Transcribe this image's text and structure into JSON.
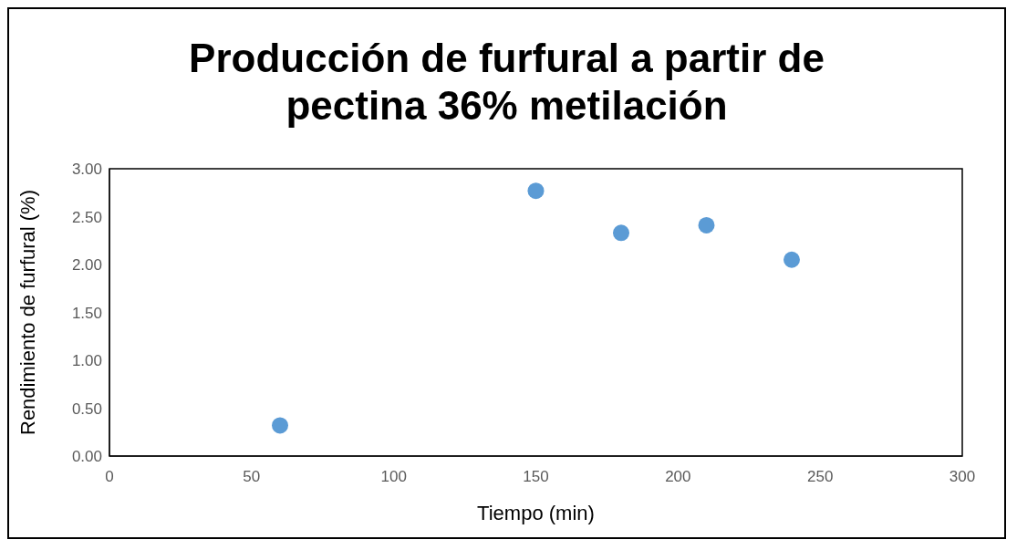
{
  "chart_data": {
    "type": "scatter",
    "title": "Producción de furfural a partir de pectina 36% metilación",
    "xlabel": "Tiempo (min)",
    "ylabel": "Rendimiento de furfural (%)",
    "x": [
      60,
      150,
      180,
      210,
      240
    ],
    "values": [
      0.32,
      2.77,
      2.33,
      2.41,
      2.05
    ],
    "color": "#5b9bd5",
    "marker": "circle",
    "grid": false,
    "legend": false,
    "xlim": [
      0,
      300
    ],
    "xticks": [
      0,
      50,
      100,
      150,
      200,
      250,
      300
    ],
    "ylim": [
      0,
      3
    ],
    "yticks": [
      {
        "value": 0,
        "label": "0.00"
      },
      {
        "value": 0.5,
        "label": "0.50"
      },
      {
        "value": 1,
        "label": "1.00"
      },
      {
        "value": 1.5,
        "label": "1.50"
      },
      {
        "value": 2,
        "label": "2.00"
      },
      {
        "value": 2.5,
        "label": "2.50"
      },
      {
        "value": 3,
        "label": "3.00"
      }
    ]
  }
}
